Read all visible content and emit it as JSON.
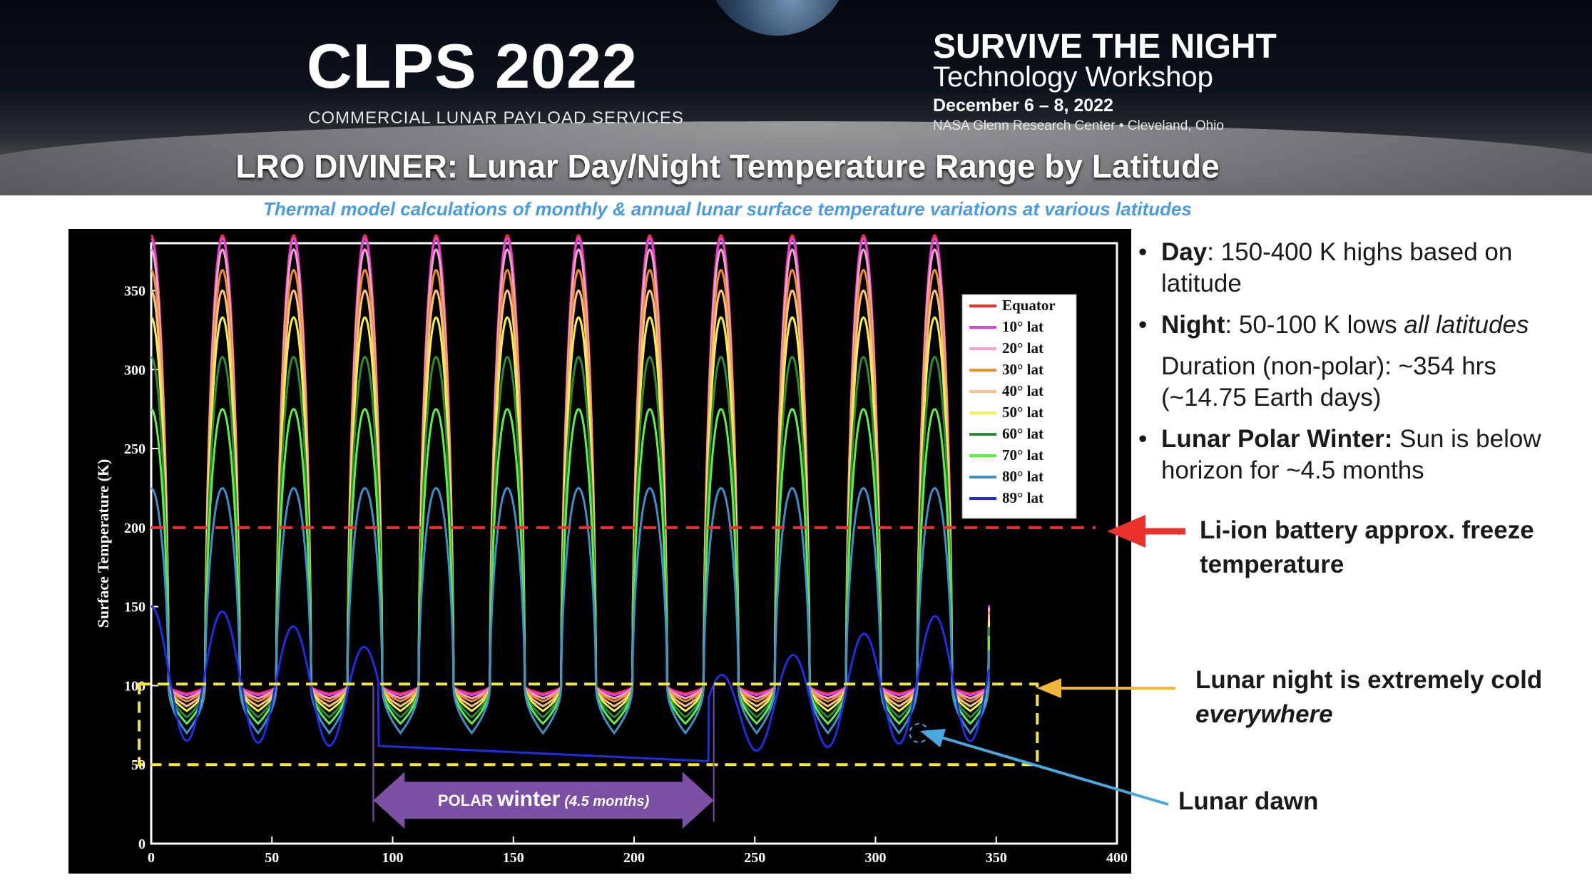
{
  "banner": {
    "conference": "CLPS 2022",
    "conference_subtitle": "COMMERCIAL LUNAR PAYLOAD SERVICES",
    "workshop_title": "SURVIVE THE NIGHT",
    "workshop_subtitle": "Technology Workshop",
    "dates": "December 6 – 8, 2022",
    "location": "NASA Glenn Research Center • Cleveland, Ohio"
  },
  "slide": {
    "title": "LRO DIVINER: Lunar Day/Night Temperature Range by Latitude",
    "subtitle": "Thermal model calculations of monthly & annual lunar surface temperature variations at various latitudes"
  },
  "bullets": {
    "day_label": "Day",
    "day_text": ": 150-400 K highs based on latitude",
    "night_label": "Night",
    "night_text": ": 50-100 K lows ",
    "night_emph": "all latitudes",
    "duration_text": "Duration (non-polar): ~354 hrs (~14.75 Earth days)",
    "polar_label": "Lunar Polar Winter:",
    "polar_text": "  Sun is below horizon for ~4.5 months"
  },
  "annotations": {
    "battery": "Li-ion battery approx. freeze temperature",
    "night_prefix": "Lunar night is extremely cold ",
    "night_emph": "everywhere",
    "dawn": "Lunar dawn",
    "polar_winter_word1": "POLAR",
    "polar_winter_word2": "winter",
    "polar_winter_duration": "(4.5 months)"
  },
  "colors": {
    "arrow_red": "#e8322b",
    "arrow_yellow": "#f2b537",
    "arrow_blue": "#4aa7df",
    "polar_arrow": "#7b4fa4",
    "threshold_line": "#e8322b",
    "night_box": "#f5e63c"
  },
  "chart_data": {
    "type": "line",
    "ylabel": "Surface Temperature (K)",
    "xlabel": "",
    "xlim": [
      0,
      400
    ],
    "ylim": [
      0,
      380
    ],
    "xticks": [
      "0",
      "50",
      "100",
      "150",
      "200",
      "250",
      "300",
      "350",
      "400"
    ],
    "yticks": [
      "0",
      "50",
      "100",
      "150",
      "200",
      "250",
      "300",
      "350"
    ],
    "period_days": 29.5,
    "day_peaks_x": [
      0,
      29.5,
      59,
      88.5,
      118,
      147.5,
      177,
      206.5,
      236,
      265.5,
      295,
      324.5
    ],
    "series": [
      {
        "name": "Equator",
        "color": "#e8322b",
        "peak_K": 385,
        "night_low_K": 95
      },
      {
        "name": "10° lat",
        "color": "#e040e8",
        "peak_K": 383,
        "night_low_K": 94
      },
      {
        "name": "20° lat",
        "color": "#f5a3c8",
        "peak_K": 376,
        "night_low_K": 92
      },
      {
        "name": "30° lat",
        "color": "#f0902c",
        "peak_K": 363,
        "night_low_K": 90
      },
      {
        "name": "40° lat",
        "color": "#f8c08a",
        "peak_K": 350,
        "night_low_K": 87
      },
      {
        "name": "50° lat",
        "color": "#f5f048",
        "peak_K": 333,
        "night_low_K": 84
      },
      {
        "name": "60° lat",
        "color": "#2e8b3a",
        "peak_K": 308,
        "night_low_K": 80
      },
      {
        "name": "70° lat",
        "color": "#5ef04a",
        "peak_K": 275,
        "night_low_K": 76
      },
      {
        "name": "80° lat",
        "color": "#3f8fc8",
        "peak_K": 225,
        "night_low_K": 70
      },
      {
        "name": "89° lat",
        "color": "#1f2ee0",
        "peak_K": 145,
        "night_low_K": 50
      }
    ],
    "reference_lines": [
      {
        "label": "Li-ion battery approx. freeze temperature",
        "y": 200
      }
    ],
    "night_box": {
      "x0": -5,
      "x1": 367,
      "y0": 50,
      "y1": 101
    },
    "polar_winter": {
      "x0": 92,
      "x1": 233,
      "label": "POLAR winter (4.5 months)"
    },
    "lunar_dawn_point": {
      "x": 318,
      "y": 70
    },
    "legend_placement": "right, inside plot"
  }
}
